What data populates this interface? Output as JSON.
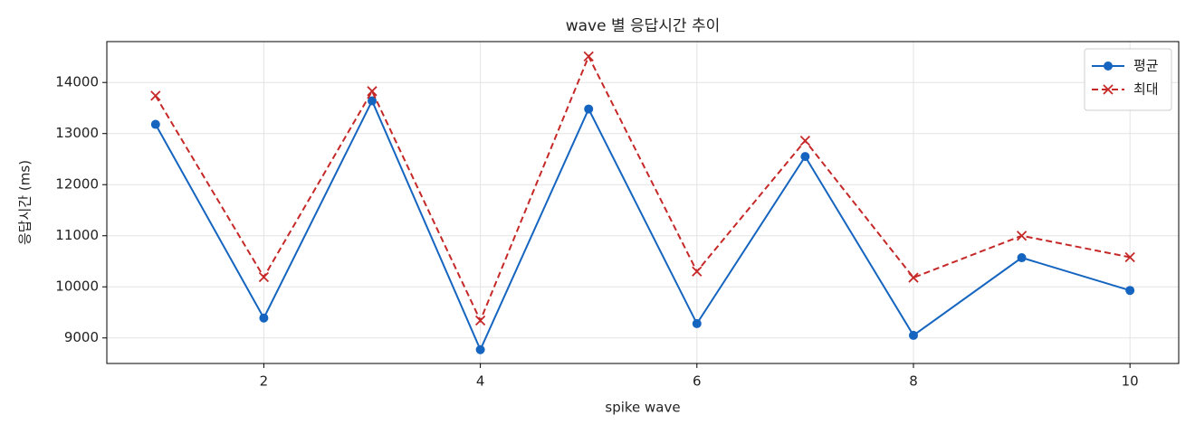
{
  "chart_data": {
    "type": "line",
    "title": "wave 별 응답시간 추이",
    "x_label": "spike wave",
    "y_label": "응답시간 (ms)",
    "x": [
      1,
      2,
      3,
      4,
      5,
      6,
      7,
      8,
      9,
      10
    ],
    "series": [
      {
        "name": "평균",
        "color": "#1565c0",
        "marker": "circle",
        "linestyle": "solid",
        "values": [
          13180,
          9390,
          13640,
          8770,
          13480,
          9280,
          12550,
          9050,
          10570,
          9930
        ]
      },
      {
        "name": "최대",
        "color": "#c62828",
        "marker": "x",
        "linestyle": "dashed",
        "values": [
          13740,
          10190,
          13830,
          9340,
          14510,
          10300,
          12860,
          10180,
          11000,
          10580
        ]
      }
    ],
    "xlim": [
      0.55,
      10.45
    ],
    "ylim": [
      8500,
      14800
    ],
    "xticks": [
      2,
      4,
      6,
      8,
      10
    ],
    "yticks": [
      9000,
      10000,
      11000,
      12000,
      13000,
      14000
    ],
    "grid": true,
    "legend": "upper right"
  }
}
